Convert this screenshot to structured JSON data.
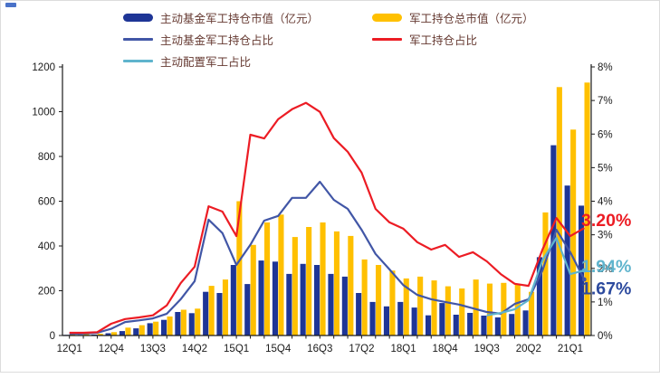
{
  "page": {
    "background": "#ffffff",
    "border_color": "#dcdcdc",
    "corner_mark_color": "#4a72c8"
  },
  "legend": {
    "items": [
      {
        "label": "主动基金军工持仓市值（亿元）",
        "swatch": "bar",
        "color": "#1e3596"
      },
      {
        "label": "军工持仓总市值（亿元）",
        "swatch": "bar",
        "color": "#ffc000"
      },
      {
        "label": "主动基金军工持仓占比",
        "swatch": "line",
        "color": "#4156a6"
      },
      {
        "label": "军工持仓占比",
        "swatch": "line",
        "color": "#ec1c24"
      },
      {
        "label": "主动配置军工占比",
        "swatch": "line",
        "color": "#5fb4cd"
      }
    ]
  },
  "chart_data": {
    "type": "combo-bar-line",
    "categories": [
      "12Q1",
      "12Q2",
      "12Q3",
      "12Q4",
      "13Q1",
      "13Q2",
      "13Q3",
      "13Q4",
      "14Q1",
      "14Q2",
      "14Q3",
      "14Q4",
      "15Q1",
      "15Q2",
      "15Q3",
      "15Q4",
      "16Q1",
      "16Q2",
      "16Q3",
      "16Q4",
      "17Q1",
      "17Q2",
      "17Q3",
      "17Q4",
      "18Q1",
      "18Q2",
      "18Q3",
      "18Q4",
      "19Q1",
      "19Q2",
      "19Q3",
      "19Q4",
      "20Q1",
      "20Q2",
      "20Q3",
      "20Q4",
      "21Q1",
      "21Q2"
    ],
    "x_tick_labels_shown": [
      "12Q1",
      "12Q4",
      "13Q3",
      "14Q2",
      "15Q1",
      "15Q4",
      "16Q3",
      "17Q2",
      "18Q1",
      "18Q4",
      "19Q3",
      "20Q2",
      "21Q1"
    ],
    "series": [
      {
        "name": "主动基金军工持仓市值（亿元）",
        "type": "bar",
        "axis": "left",
        "color": "#1e3596",
        "values": [
          3,
          3,
          4,
          10,
          20,
          32,
          55,
          70,
          105,
          100,
          195,
          190,
          315,
          230,
          335,
          330,
          275,
          320,
          315,
          275,
          263,
          190,
          150,
          130,
          150,
          125,
          90,
          145,
          93,
          101,
          89,
          81,
          96,
          112,
          350,
          850,
          670,
          580
        ]
      },
      {
        "name": "军工持仓总市值（亿元）",
        "type": "bar",
        "axis": "left",
        "color": "#ffc000",
        "values": [
          5,
          6,
          8,
          15,
          35,
          46,
          62,
          85,
          115,
          120,
          222,
          250,
          600,
          405,
          505,
          540,
          440,
          485,
          505,
          465,
          445,
          340,
          315,
          290,
          255,
          263,
          246,
          220,
          210,
          250,
          232,
          235,
          228,
          195,
          550,
          1110,
          920,
          1130
        ]
      },
      {
        "name": "主动基金军工持仓占比",
        "type": "line",
        "axis": "right",
        "color": "#4156a6",
        "values": [
          0.05,
          0.06,
          0.08,
          0.2,
          0.4,
          0.45,
          0.51,
          0.65,
          1.08,
          1.62,
          3.45,
          3.05,
          2.1,
          2.7,
          3.42,
          3.56,
          4.1,
          4.1,
          4.58,
          4.04,
          3.77,
          3.15,
          2.43,
          1.97,
          1.5,
          1.21,
          1.08,
          1.0,
          0.92,
          0.81,
          0.7,
          0.65,
          0.94,
          1.08,
          1.94,
          3.15,
          2.48,
          1.67
        ]
      },
      {
        "name": "军工持仓占比",
        "type": "line",
        "axis": "right",
        "color": "#ec1c24",
        "values": [
          0.08,
          0.08,
          0.1,
          0.35,
          0.49,
          0.54,
          0.6,
          0.9,
          1.56,
          2.05,
          3.85,
          3.69,
          2.96,
          5.98,
          5.87,
          6.44,
          6.74,
          6.93,
          6.66,
          5.88,
          5.47,
          4.85,
          3.77,
          3.37,
          3.18,
          2.78,
          2.56,
          2.7,
          2.34,
          2.48,
          2.21,
          1.83,
          1.54,
          1.48,
          2.56,
          3.5,
          2.96,
          3.2
        ]
      },
      {
        "name": "主动配置军工占比",
        "type": "line",
        "axis": "right",
        "color": "#5fb4cd",
        "values": [
          null,
          null,
          null,
          null,
          null,
          null,
          null,
          null,
          null,
          null,
          null,
          null,
          null,
          null,
          null,
          null,
          null,
          null,
          null,
          null,
          null,
          null,
          null,
          null,
          null,
          null,
          null,
          null,
          null,
          null,
          0.6,
          0.67,
          0.78,
          1.05,
          2.24,
          2.91,
          1.83,
          1.94
        ]
      }
    ],
    "left_axis": {
      "min": 0,
      "max": 1200,
      "step": 200,
      "ticks": [
        "0",
        "200",
        "400",
        "600",
        "800",
        "1000",
        "1200"
      ]
    },
    "right_axis": {
      "min": 0,
      "max": 8,
      "step": 1,
      "ticks": [
        "0%",
        "1%",
        "2%",
        "3%",
        "4%",
        "5%",
        "6%",
        "7%",
        "8%"
      ]
    },
    "grid": false,
    "legend_position": "top",
    "annotations": [
      {
        "text": "3.20%",
        "color": "#ec1c24",
        "anchor_pct": 3.45
      },
      {
        "text": "1.94%",
        "color": "#5fb4cd",
        "anchor_pct": 2.08
      },
      {
        "text": "1.67%",
        "color": "#2c4a9e",
        "anchor_pct": 1.42
      }
    ]
  }
}
